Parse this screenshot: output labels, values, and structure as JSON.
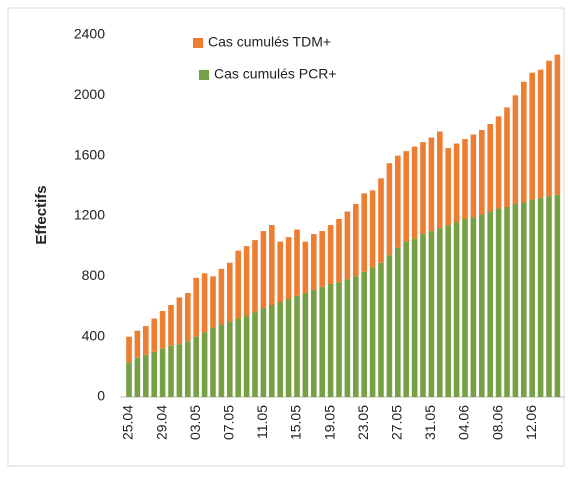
{
  "chart_data": {
    "type": "stacked_bar",
    "y_label": "Effectifs",
    "categories": [
      "25.04",
      null,
      null,
      null,
      "29.04",
      null,
      null,
      null,
      "03.05",
      null,
      null,
      null,
      "07.05",
      null,
      null,
      null,
      "11.05",
      null,
      null,
      null,
      "15.05",
      null,
      null,
      null,
      "19.05",
      null,
      null,
      null,
      "23.05",
      null,
      null,
      null,
      "27.05",
      null,
      null,
      null,
      "31.05",
      null,
      null,
      null,
      "04.06",
      null,
      null,
      null,
      "08.06",
      null,
      null,
      null,
      "12.06",
      null,
      null,
      null
    ],
    "series": [
      {
        "name": "Cas cumulés PCR+",
        "color": "#76a044",
        "values": [
          230,
          260,
          280,
          300,
          320,
          340,
          350,
          370,
          400,
          430,
          460,
          480,
          500,
          520,
          540,
          560,
          590,
          610,
          630,
          650,
          670,
          690,
          710,
          730,
          750,
          760,
          780,
          800,
          830,
          860,
          890,
          940,
          990,
          1030,
          1050,
          1080,
          1100,
          1120,
          1140,
          1160,
          1180,
          1190,
          1210,
          1230,
          1250,
          1260,
          1280,
          1290,
          1310,
          1320,
          1330,
          1340
        ]
      },
      {
        "name": "Cas cumulés TDM+",
        "color": "#ed7d31",
        "values": [
          170,
          180,
          190,
          220,
          250,
          270,
          310,
          320,
          390,
          390,
          340,
          370,
          390,
          450,
          460,
          480,
          510,
          530,
          400,
          410,
          440,
          340,
          370,
          370,
          390,
          420,
          450,
          480,
          520,
          510,
          560,
          610,
          610,
          600,
          610,
          610,
          620,
          640,
          510,
          520,
          530,
          550,
          560,
          580,
          610,
          660,
          720,
          800,
          840,
          850,
          900,
          930
        ]
      }
    ],
    "ylim": [
      0,
      2400
    ],
    "yticks": [
      0,
      400,
      800,
      1200,
      1600,
      2000,
      2400
    ]
  }
}
